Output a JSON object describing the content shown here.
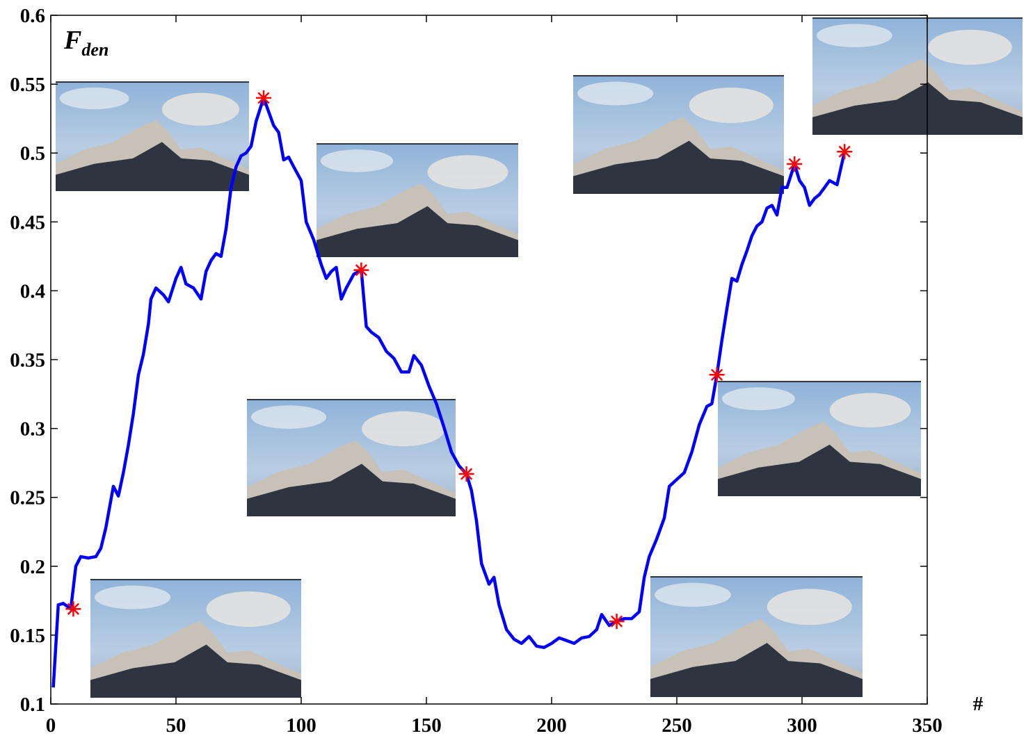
{
  "chart_data": {
    "type": "line",
    "y_label": {
      "main": "F",
      "subscript": "den"
    },
    "x_label": "#",
    "xlim": [
      0,
      350
    ],
    "xticks": [
      0,
      50,
      100,
      150,
      200,
      250,
      300,
      350
    ],
    "ylim": [
      0.1,
      0.6
    ],
    "yticks": [
      0.1,
      0.15,
      0.2,
      0.25,
      0.3,
      0.35,
      0.4,
      0.45,
      0.5,
      0.55,
      0.6
    ],
    "series": [
      {
        "color": "#0000ff",
        "x": [
          1,
          3,
          5,
          8,
          10,
          12,
          15,
          18,
          20,
          22,
          25,
          27,
          29,
          31,
          33,
          35,
          37,
          39,
          40,
          42,
          45,
          47,
          50,
          52,
          54,
          57,
          60,
          62,
          64,
          66,
          68,
          70,
          72,
          74,
          76,
          78,
          80,
          82,
          85,
          87,
          89,
          91,
          93,
          95,
          97,
          100,
          102,
          105,
          108,
          110,
          112,
          114,
          116,
          118,
          121,
          124,
          126,
          128,
          131,
          134,
          137,
          140,
          143,
          145,
          148,
          151,
          154,
          157,
          160,
          163,
          166,
          168,
          170,
          172,
          175,
          177,
          179,
          182,
          185,
          188,
          191,
          194,
          197,
          200,
          203,
          206,
          209,
          212,
          215,
          218,
          220,
          223,
          226,
          229,
          232,
          235,
          237,
          239,
          242,
          245,
          247,
          250,
          253,
          256,
          259,
          262,
          264,
          266,
          268,
          270,
          272,
          274,
          276,
          278,
          280,
          282,
          284,
          286,
          288,
          290,
          292,
          294,
          297,
          299,
          301,
          303,
          305,
          307,
          309,
          311,
          314,
          317
        ],
        "values": [
          0.112,
          0.172,
          0.173,
          0.169,
          0.2,
          0.207,
          0.206,
          0.207,
          0.213,
          0.228,
          0.258,
          0.251,
          0.268,
          0.288,
          0.311,
          0.339,
          0.354,
          0.376,
          0.394,
          0.402,
          0.397,
          0.392,
          0.409,
          0.417,
          0.405,
          0.402,
          0.394,
          0.414,
          0.422,
          0.427,
          0.425,
          0.445,
          0.475,
          0.49,
          0.498,
          0.5,
          0.505,
          0.523,
          0.54,
          0.53,
          0.52,
          0.515,
          0.495,
          0.497,
          0.49,
          0.48,
          0.45,
          0.437,
          0.419,
          0.409,
          0.414,
          0.417,
          0.394,
          0.402,
          0.412,
          0.415,
          0.374,
          0.37,
          0.366,
          0.356,
          0.351,
          0.341,
          0.341,
          0.353,
          0.346,
          0.331,
          0.318,
          0.301,
          0.283,
          0.273,
          0.267,
          0.255,
          0.233,
          0.202,
          0.187,
          0.192,
          0.172,
          0.154,
          0.147,
          0.144,
          0.149,
          0.142,
          0.141,
          0.144,
          0.148,
          0.146,
          0.144,
          0.148,
          0.149,
          0.154,
          0.165,
          0.157,
          0.16,
          0.162,
          0.162,
          0.167,
          0.192,
          0.207,
          0.22,
          0.235,
          0.258,
          0.263,
          0.268,
          0.283,
          0.303,
          0.316,
          0.318,
          0.339,
          0.364,
          0.387,
          0.409,
          0.407,
          0.419,
          0.429,
          0.44,
          0.447,
          0.45,
          0.46,
          0.462,
          0.455,
          0.475,
          0.475,
          0.492,
          0.48,
          0.475,
          0.462,
          0.467,
          0.47,
          0.475,
          0.48,
          0.477,
          0.501
        ]
      },
      {
        "color": "#ff0000",
        "marker": "asterisk",
        "x": [
          9,
          85,
          124,
          166,
          226,
          266,
          297,
          317
        ],
        "values": [
          0.169,
          0.54,
          0.415,
          0.267,
          0.16,
          0.339,
          0.492,
          0.501
        ]
      }
    ]
  }
}
